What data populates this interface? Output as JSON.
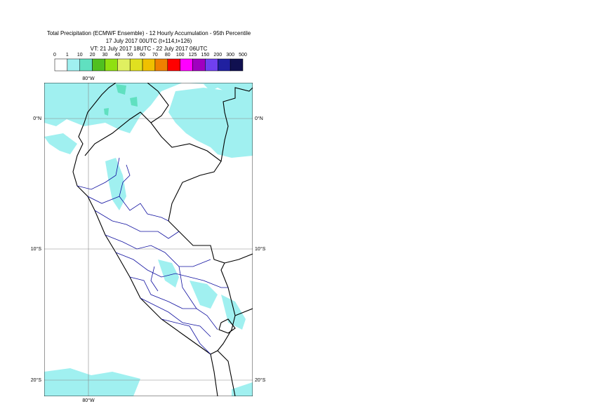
{
  "header": {
    "title": "Total Precipitation (ECMWF Ensemble) - 12 Hourly Accumulation - 95th Percentile",
    "base_time": "17 July 2017 00UTC (t+114,t+126)",
    "valid_time": "VT: 21 July 2017 18UTC - 22 July 2017 06UTC"
  },
  "legend": {
    "thresholds": [
      "0",
      "1",
      "10",
      "20",
      "30",
      "40",
      "50",
      "60",
      "70",
      "80",
      "100",
      "125",
      "150",
      "200",
      "300",
      "500"
    ],
    "colors": [
      "#ffffff",
      "#a0f0f0",
      "#60e0c0",
      "#50c020",
      "#90e010",
      "#e0f060",
      "#e0e020",
      "#f0c000",
      "#f08000",
      "#ff0000",
      "#ff00ff",
      "#a000c0",
      "#7040f0",
      "#2020a0",
      "#101050"
    ]
  },
  "map": {
    "lon_label": "80°W",
    "lat_labels": [
      "0°N",
      "10°S",
      "20°S"
    ]
  }
}
